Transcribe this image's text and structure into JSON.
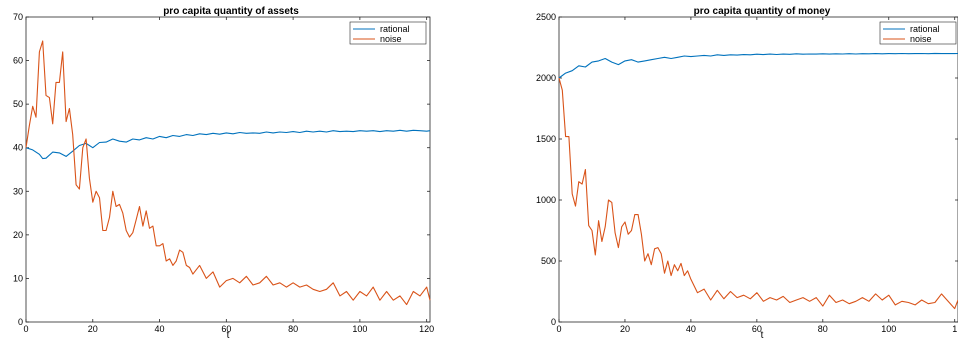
{
  "chart_data": [
    {
      "type": "line",
      "title": "pro capita  quantity of assets",
      "xlabel": "t",
      "ylabel": "",
      "xlim": [
        0,
        121
      ],
      "ylim": [
        0,
        70
      ],
      "xticks": [
        0,
        20,
        40,
        60,
        80,
        100,
        120
      ],
      "yticks": [
        0,
        10,
        20,
        30,
        40,
        50,
        60,
        70
      ],
      "grid": false,
      "legend": "top-right",
      "series": [
        {
          "name": "rational",
          "color": "#0072BD",
          "x": [
            0,
            2,
            4,
            5,
            6,
            8,
            10,
            12,
            14,
            16,
            18,
            20,
            22,
            24,
            26,
            28,
            30,
            32,
            34,
            36,
            38,
            40,
            42,
            44,
            46,
            48,
            50,
            52,
            54,
            56,
            58,
            60,
            62,
            64,
            66,
            68,
            70,
            72,
            74,
            76,
            78,
            80,
            82,
            84,
            86,
            88,
            90,
            92,
            94,
            96,
            98,
            100,
            102,
            104,
            106,
            108,
            110,
            112,
            114,
            116,
            118,
            120,
            121
          ],
          "y": [
            40,
            39.5,
            38.5,
            37.5,
            37.6,
            39,
            38.8,
            38,
            39.2,
            40.5,
            41,
            40,
            41.2,
            41.3,
            42,
            41.5,
            41.3,
            42,
            41.8,
            42.3,
            42,
            42.6,
            42.3,
            42.8,
            42.6,
            43,
            42.8,
            43.2,
            43,
            43.3,
            43.1,
            43.4,
            43.2,
            43.5,
            43.3,
            43.4,
            43.3,
            43.6,
            43.4,
            43.6,
            43.5,
            43.7,
            43.5,
            43.8,
            43.6,
            43.8,
            43.6,
            43.9,
            43.7,
            43.8,
            43.7,
            43.9,
            43.8,
            43.9,
            43.7,
            43.9,
            43.8,
            44,
            43.8,
            44,
            43.9,
            43.8,
            43.9
          ]
        },
        {
          "name": "noise",
          "color": "#D95319",
          "x": [
            0,
            1,
            2,
            3,
            4,
            5,
            6,
            7,
            8,
            9,
            10,
            11,
            12,
            13,
            14,
            15,
            16,
            17,
            18,
            19,
            20,
            21,
            22,
            23,
            24,
            25,
            26,
            27,
            28,
            29,
            30,
            31,
            32,
            33,
            34,
            35,
            36,
            37,
            38,
            39,
            40,
            41,
            42,
            43,
            44,
            45,
            46,
            47,
            48,
            49,
            50,
            52,
            54,
            56,
            58,
            60,
            62,
            64,
            66,
            68,
            70,
            72,
            74,
            76,
            78,
            80,
            82,
            84,
            86,
            88,
            90,
            92,
            94,
            96,
            98,
            100,
            102,
            104,
            106,
            108,
            110,
            112,
            114,
            116,
            118,
            120,
            121
          ],
          "y": [
            40,
            45,
            49.5,
            47,
            62,
            64.5,
            52,
            51.5,
            45.5,
            55,
            55,
            62,
            46,
            49,
            43,
            31.5,
            30.5,
            40,
            42,
            33,
            27.5,
            30,
            28.5,
            21,
            21,
            24,
            30,
            26.5,
            27,
            25,
            21,
            19.5,
            20.5,
            23.5,
            26.5,
            22,
            25.5,
            21.5,
            22,
            17.5,
            17.5,
            18,
            14,
            14.5,
            13,
            14,
            16.5,
            16,
            13,
            12.5,
            11,
            13,
            10,
            11.5,
            8,
            9.5,
            10,
            9,
            10.5,
            8.5,
            9,
            10.5,
            8.5,
            9,
            8,
            9,
            8,
            8.5,
            7.5,
            7,
            7.5,
            9,
            6,
            7,
            5,
            7,
            6,
            8,
            5,
            7,
            5,
            6,
            4,
            7,
            6,
            8,
            5
          ]
        }
      ]
    },
    {
      "type": "line",
      "title": "pro capita quantity of money",
      "xlabel": "t",
      "ylabel": "",
      "xlim": [
        0,
        121
      ],
      "ylim": [
        0,
        2500
      ],
      "xticks": [
        0,
        20,
        40,
        60,
        80,
        100
      ],
      "xticklabels_override": {
        "120": "1"
      },
      "yticks": [
        0,
        500,
        1000,
        1500,
        2000,
        2500
      ],
      "grid": false,
      "legend": "top-right",
      "series": [
        {
          "name": "rational",
          "color": "#0072BD",
          "x": [
            0,
            2,
            4,
            6,
            8,
            10,
            12,
            14,
            16,
            18,
            20,
            22,
            24,
            26,
            28,
            30,
            32,
            34,
            36,
            38,
            40,
            42,
            44,
            46,
            48,
            50,
            52,
            54,
            56,
            58,
            60,
            62,
            64,
            66,
            68,
            70,
            72,
            74,
            76,
            78,
            80,
            82,
            84,
            86,
            88,
            90,
            92,
            94,
            96,
            98,
            100,
            102,
            104,
            106,
            108,
            110,
            112,
            114,
            116,
            118,
            120,
            121
          ],
          "y": [
            2000,
            2040,
            2060,
            2100,
            2090,
            2130,
            2140,
            2160,
            2130,
            2110,
            2140,
            2150,
            2130,
            2140,
            2150,
            2160,
            2170,
            2160,
            2170,
            2180,
            2175,
            2180,
            2185,
            2180,
            2190,
            2185,
            2190,
            2188,
            2192,
            2190,
            2195,
            2192,
            2196,
            2193,
            2196,
            2194,
            2198,
            2195,
            2197,
            2196,
            2198,
            2196,
            2198,
            2197,
            2199,
            2197,
            2199,
            2198,
            2200,
            2198,
            2200,
            2199,
            2201,
            2199,
            2200,
            2201,
            2199,
            2202,
            2200,
            2201,
            2200,
            2201
          ]
        },
        {
          "name": "noise",
          "color": "#D95319",
          "x": [
            0,
            1,
            2,
            3,
            4,
            5,
            6,
            7,
            8,
            9,
            10,
            11,
            12,
            13,
            14,
            15,
            16,
            17,
            18,
            19,
            20,
            21,
            22,
            23,
            24,
            25,
            26,
            27,
            28,
            29,
            30,
            31,
            32,
            33,
            34,
            35,
            36,
            37,
            38,
            39,
            40,
            42,
            44,
            46,
            48,
            50,
            52,
            54,
            56,
            58,
            60,
            62,
            64,
            66,
            68,
            70,
            72,
            74,
            76,
            78,
            80,
            82,
            84,
            86,
            88,
            90,
            92,
            94,
            96,
            98,
            100,
            102,
            104,
            106,
            108,
            110,
            112,
            114,
            116,
            118,
            120,
            121
          ],
          "y": [
            2000,
            1900,
            1520,
            1520,
            1050,
            950,
            1150,
            1130,
            1250,
            790,
            750,
            550,
            830,
            660,
            780,
            1000,
            980,
            730,
            610,
            780,
            820,
            720,
            750,
            880,
            880,
            720,
            500,
            560,
            470,
            600,
            610,
            560,
            400,
            500,
            380,
            470,
            420,
            480,
            380,
            420,
            350,
            240,
            270,
            180,
            260,
            190,
            250,
            200,
            220,
            190,
            240,
            170,
            200,
            180,
            210,
            160,
            180,
            200,
            170,
            200,
            130,
            220,
            160,
            180,
            150,
            170,
            200,
            170,
            230,
            180,
            220,
            140,
            170,
            160,
            140,
            180,
            150,
            160,
            230,
            170,
            110,
            180
          ]
        }
      ]
    }
  ]
}
